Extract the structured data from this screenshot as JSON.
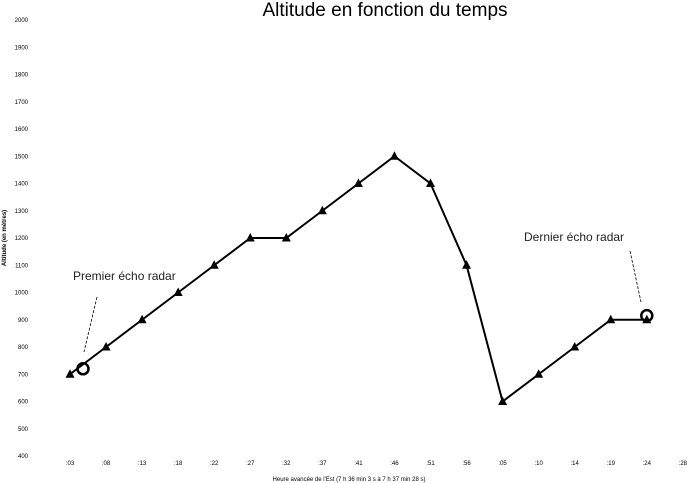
{
  "chart_data": {
    "type": "line",
    "title": "Altitude en fonction du temps",
    "xlabel": "Heure avancée de l'Est (7 h 36 min 3 s à 7 h 37 min 28 s)",
    "ylabel": "Altitude (en mètres)",
    "categories": [
      ":03",
      ":08",
      ":13",
      ":18",
      ":22",
      ":27",
      ":32",
      ":37",
      ":41",
      ":46",
      ":51",
      ":56",
      ":05",
      ":10",
      ":14",
      ":19",
      ":24",
      ":28"
    ],
    "ylim": [
      400,
      2000
    ],
    "yticks": [
      400,
      500,
      600,
      700,
      800,
      900,
      1000,
      1100,
      1200,
      1300,
      1400,
      1500,
      1600,
      1700,
      1800,
      1900,
      2000
    ],
    "series": [
      {
        "points": [
          {
            "x": ":03",
            "y": 700
          },
          {
            "x": ":08",
            "y": 800
          },
          {
            "x": ":13",
            "y": 900
          },
          {
            "x": ":18",
            "y": 1000
          },
          {
            "x": ":22",
            "y": 1100
          },
          {
            "x": ":27",
            "y": 1200
          },
          {
            "x": ":32",
            "y": 1200
          },
          {
            "x": ":37",
            "y": 1300
          },
          {
            "x": ":41",
            "y": 1400
          },
          {
            "x": ":46",
            "y": 1500
          },
          {
            "x": ":51",
            "y": 1400
          },
          {
            "x": ":56",
            "y": 1100
          },
          {
            "x": ":05",
            "y": 600
          },
          {
            "x": ":10",
            "y": 700
          },
          {
            "x": ":14",
            "y": 800
          },
          {
            "x": ":19",
            "y": 900
          },
          {
            "x": ":24",
            "y": 900
          }
        ]
      }
    ],
    "annotations": [
      {
        "text": "Premier écho radar",
        "x": ":03",
        "y": 720
      },
      {
        "text": "Dernier écho radar",
        "x": ":24",
        "y": 915
      }
    ],
    "grid": false,
    "legend": "none"
  }
}
